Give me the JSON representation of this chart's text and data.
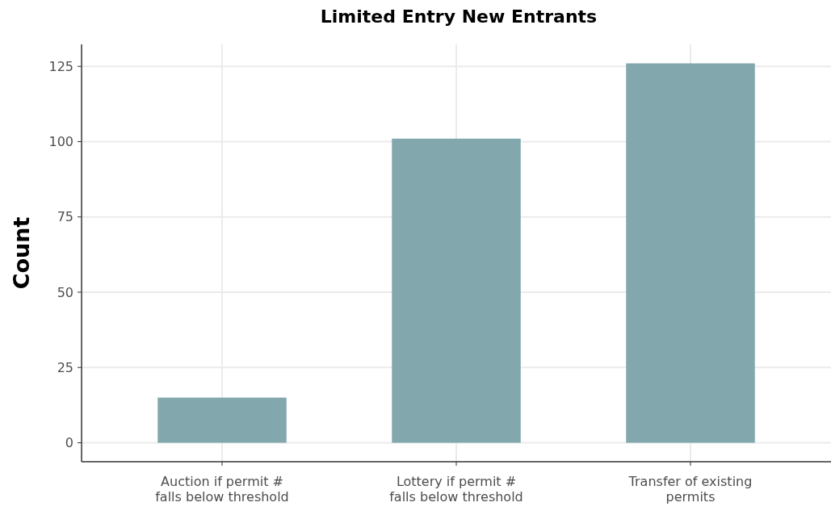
{
  "chart_data": {
    "type": "bar",
    "title": "Limited Entry New Entrants",
    "ylabel": "Count",
    "categories": [
      "Auction if permit #\nfalls below threshold",
      "Lottery if permit #\nfalls below threshold",
      "Transfer of existing\npermits"
    ],
    "values": [
      15,
      101,
      126
    ],
    "color": "#82a8ad",
    "ylim": [
      -6.3,
      132.3
    ],
    "yticks": [
      0,
      25,
      50,
      75,
      100,
      125
    ],
    "grid": true
  }
}
